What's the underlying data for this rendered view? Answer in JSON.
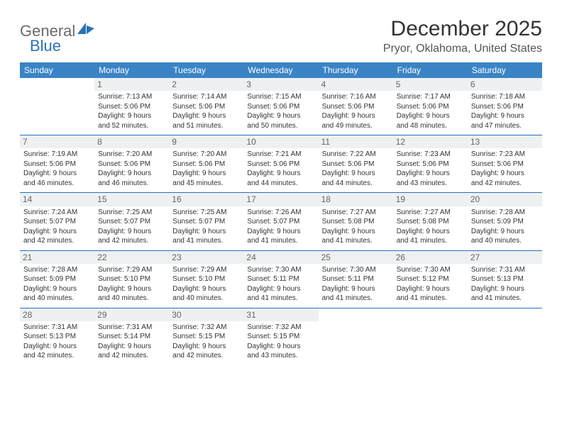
{
  "logo": {
    "general": "General",
    "blue": "Blue"
  },
  "title": "December 2025",
  "location": "Pryor, Oklahoma, United States",
  "header_bg": "#3a84c6",
  "rule_color": "#2a71b8",
  "daybar_bg": "#eef0f2",
  "weekdays": [
    "Sunday",
    "Monday",
    "Tuesday",
    "Wednesday",
    "Thursday",
    "Friday",
    "Saturday"
  ],
  "weeks": [
    [
      {
        "n": "",
        "sr": "",
        "ss": "",
        "d1": "",
        "d2": ""
      },
      {
        "n": "1",
        "sr": "Sunrise: 7:13 AM",
        "ss": "Sunset: 5:06 PM",
        "d1": "Daylight: 9 hours",
        "d2": "and 52 minutes."
      },
      {
        "n": "2",
        "sr": "Sunrise: 7:14 AM",
        "ss": "Sunset: 5:06 PM",
        "d1": "Daylight: 9 hours",
        "d2": "and 51 minutes."
      },
      {
        "n": "3",
        "sr": "Sunrise: 7:15 AM",
        "ss": "Sunset: 5:06 PM",
        "d1": "Daylight: 9 hours",
        "d2": "and 50 minutes."
      },
      {
        "n": "4",
        "sr": "Sunrise: 7:16 AM",
        "ss": "Sunset: 5:06 PM",
        "d1": "Daylight: 9 hours",
        "d2": "and 49 minutes."
      },
      {
        "n": "5",
        "sr": "Sunrise: 7:17 AM",
        "ss": "Sunset: 5:06 PM",
        "d1": "Daylight: 9 hours",
        "d2": "and 48 minutes."
      },
      {
        "n": "6",
        "sr": "Sunrise: 7:18 AM",
        "ss": "Sunset: 5:06 PM",
        "d1": "Daylight: 9 hours",
        "d2": "and 47 minutes."
      }
    ],
    [
      {
        "n": "7",
        "sr": "Sunrise: 7:19 AM",
        "ss": "Sunset: 5:06 PM",
        "d1": "Daylight: 9 hours",
        "d2": "and 46 minutes."
      },
      {
        "n": "8",
        "sr": "Sunrise: 7:20 AM",
        "ss": "Sunset: 5:06 PM",
        "d1": "Daylight: 9 hours",
        "d2": "and 46 minutes."
      },
      {
        "n": "9",
        "sr": "Sunrise: 7:20 AM",
        "ss": "Sunset: 5:06 PM",
        "d1": "Daylight: 9 hours",
        "d2": "and 45 minutes."
      },
      {
        "n": "10",
        "sr": "Sunrise: 7:21 AM",
        "ss": "Sunset: 5:06 PM",
        "d1": "Daylight: 9 hours",
        "d2": "and 44 minutes."
      },
      {
        "n": "11",
        "sr": "Sunrise: 7:22 AM",
        "ss": "Sunset: 5:06 PM",
        "d1": "Daylight: 9 hours",
        "d2": "and 44 minutes."
      },
      {
        "n": "12",
        "sr": "Sunrise: 7:23 AM",
        "ss": "Sunset: 5:06 PM",
        "d1": "Daylight: 9 hours",
        "d2": "and 43 minutes."
      },
      {
        "n": "13",
        "sr": "Sunrise: 7:23 AM",
        "ss": "Sunset: 5:06 PM",
        "d1": "Daylight: 9 hours",
        "d2": "and 42 minutes."
      }
    ],
    [
      {
        "n": "14",
        "sr": "Sunrise: 7:24 AM",
        "ss": "Sunset: 5:07 PM",
        "d1": "Daylight: 9 hours",
        "d2": "and 42 minutes."
      },
      {
        "n": "15",
        "sr": "Sunrise: 7:25 AM",
        "ss": "Sunset: 5:07 PM",
        "d1": "Daylight: 9 hours",
        "d2": "and 42 minutes."
      },
      {
        "n": "16",
        "sr": "Sunrise: 7:25 AM",
        "ss": "Sunset: 5:07 PM",
        "d1": "Daylight: 9 hours",
        "d2": "and 41 minutes."
      },
      {
        "n": "17",
        "sr": "Sunrise: 7:26 AM",
        "ss": "Sunset: 5:07 PM",
        "d1": "Daylight: 9 hours",
        "d2": "and 41 minutes."
      },
      {
        "n": "18",
        "sr": "Sunrise: 7:27 AM",
        "ss": "Sunset: 5:08 PM",
        "d1": "Daylight: 9 hours",
        "d2": "and 41 minutes."
      },
      {
        "n": "19",
        "sr": "Sunrise: 7:27 AM",
        "ss": "Sunset: 5:08 PM",
        "d1": "Daylight: 9 hours",
        "d2": "and 41 minutes."
      },
      {
        "n": "20",
        "sr": "Sunrise: 7:28 AM",
        "ss": "Sunset: 5:09 PM",
        "d1": "Daylight: 9 hours",
        "d2": "and 40 minutes."
      }
    ],
    [
      {
        "n": "21",
        "sr": "Sunrise: 7:28 AM",
        "ss": "Sunset: 5:09 PM",
        "d1": "Daylight: 9 hours",
        "d2": "and 40 minutes."
      },
      {
        "n": "22",
        "sr": "Sunrise: 7:29 AM",
        "ss": "Sunset: 5:10 PM",
        "d1": "Daylight: 9 hours",
        "d2": "and 40 minutes."
      },
      {
        "n": "23",
        "sr": "Sunrise: 7:29 AM",
        "ss": "Sunset: 5:10 PM",
        "d1": "Daylight: 9 hours",
        "d2": "and 40 minutes."
      },
      {
        "n": "24",
        "sr": "Sunrise: 7:30 AM",
        "ss": "Sunset: 5:11 PM",
        "d1": "Daylight: 9 hours",
        "d2": "and 41 minutes."
      },
      {
        "n": "25",
        "sr": "Sunrise: 7:30 AM",
        "ss": "Sunset: 5:11 PM",
        "d1": "Daylight: 9 hours",
        "d2": "and 41 minutes."
      },
      {
        "n": "26",
        "sr": "Sunrise: 7:30 AM",
        "ss": "Sunset: 5:12 PM",
        "d1": "Daylight: 9 hours",
        "d2": "and 41 minutes."
      },
      {
        "n": "27",
        "sr": "Sunrise: 7:31 AM",
        "ss": "Sunset: 5:13 PM",
        "d1": "Daylight: 9 hours",
        "d2": "and 41 minutes."
      }
    ],
    [
      {
        "n": "28",
        "sr": "Sunrise: 7:31 AM",
        "ss": "Sunset: 5:13 PM",
        "d1": "Daylight: 9 hours",
        "d2": "and 42 minutes."
      },
      {
        "n": "29",
        "sr": "Sunrise: 7:31 AM",
        "ss": "Sunset: 5:14 PM",
        "d1": "Daylight: 9 hours",
        "d2": "and 42 minutes."
      },
      {
        "n": "30",
        "sr": "Sunrise: 7:32 AM",
        "ss": "Sunset: 5:15 PM",
        "d1": "Daylight: 9 hours",
        "d2": "and 42 minutes."
      },
      {
        "n": "31",
        "sr": "Sunrise: 7:32 AM",
        "ss": "Sunset: 5:15 PM",
        "d1": "Daylight: 9 hours",
        "d2": "and 43 minutes."
      },
      {
        "n": "",
        "sr": "",
        "ss": "",
        "d1": "",
        "d2": ""
      },
      {
        "n": "",
        "sr": "",
        "ss": "",
        "d1": "",
        "d2": ""
      },
      {
        "n": "",
        "sr": "",
        "ss": "",
        "d1": "",
        "d2": ""
      }
    ]
  ]
}
